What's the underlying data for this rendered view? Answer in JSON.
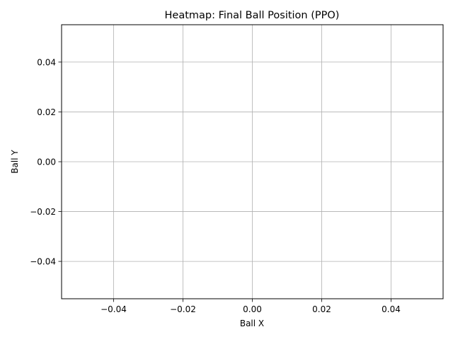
{
  "chart_data": {
    "type": "heatmap",
    "title": "Heatmap: Final Ball Position (PPO)",
    "xlabel": "Ball X",
    "ylabel": "Ball Y",
    "xlim": [
      -0.055,
      0.055
    ],
    "ylim": [
      -0.055,
      0.055
    ],
    "xticks": [
      -0.04,
      -0.02,
      0.0,
      0.02,
      0.04
    ],
    "yticks": [
      -0.04,
      -0.02,
      0.0,
      0.02,
      0.04
    ],
    "xtick_labels": [
      "−0.04",
      "−0.02",
      "0.00",
      "0.02",
      "0.04"
    ],
    "ytick_labels": [
      "−0.04",
      "−0.02",
      "0.00",
      "0.02",
      "0.04"
    ],
    "grid": true,
    "values": []
  },
  "colors": {
    "grid": "#b0b0b0",
    "axes": "#000000",
    "background": "#ffffff"
  }
}
